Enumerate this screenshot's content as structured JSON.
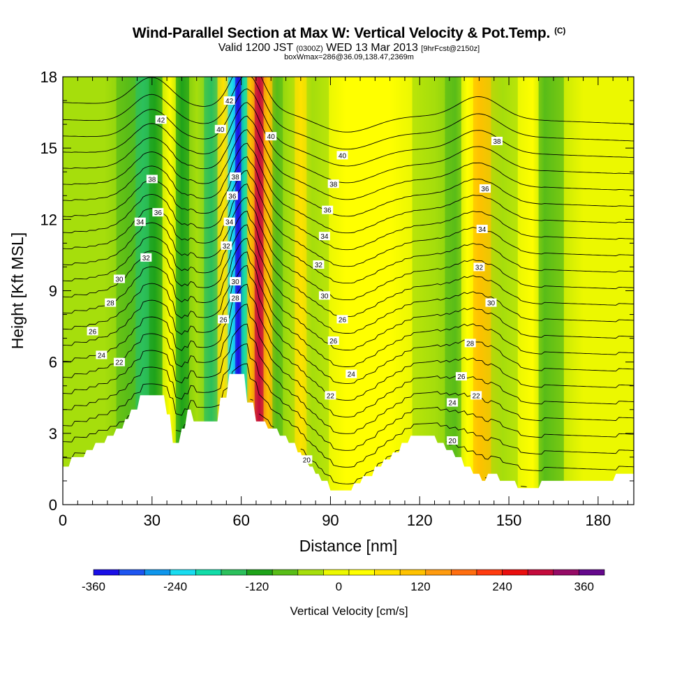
{
  "header": {
    "title": "Wind-Parallel Section at Max W: Vertical Velocity & Pot.Temp.",
    "title_mark": "(C)",
    "valid_prefix": "Valid 1200 JST",
    "valid_zulu": "(0300Z)",
    "valid_date": "WED 13 Mar 2013",
    "forecast": "[9hrFcst@2150z]",
    "box_info": "boxWmax=286@36.09,138.47,2369m"
  },
  "chart_data": {
    "type": "heatmap",
    "xlabel": "Distance [nm]",
    "ylabel": "Height [Kft MSL]",
    "xlim": [
      0,
      192
    ],
    "ylim": [
      0,
      18
    ],
    "x_ticks": [
      0,
      30,
      60,
      90,
      120,
      150,
      180
    ],
    "y_ticks": [
      0,
      3,
      6,
      9,
      12,
      15,
      18
    ],
    "colorbar": {
      "label": "Vertical Velocity [cm/s]",
      "range": [
        -360,
        390
      ],
      "tick_values": [
        -360,
        -240,
        -120,
        0,
        120,
        240,
        360
      ],
      "tick_labels": [
        "-360",
        "-240",
        "-120",
        "0",
        "120",
        "240",
        "360"
      ],
      "colors": [
        "#1a0fe6",
        "#1e55f0",
        "#0f96ec",
        "#19dcf0",
        "#12dca8",
        "#2cc05c",
        "#1fa31a",
        "#59bd18",
        "#a6de0c",
        "#ecf800",
        "#ffff00",
        "#ffe200",
        "#ffc200",
        "#ff9b0f",
        "#ff6e10",
        "#ff3b10",
        "#ea0f0f",
        "#c40b3c",
        "#950b66",
        "#65098c"
      ]
    },
    "vertical_velocity_columns": [
      {
        "x": 5,
        "w": -60
      },
      {
        "x": 14,
        "w": -40
      },
      {
        "x": 22,
        "w": -70
      },
      {
        "x": 27,
        "w": -140
      },
      {
        "x": 31,
        "w": -100
      },
      {
        "x": 36,
        "w": 40
      },
      {
        "x": 40,
        "w": -120
      },
      {
        "x": 45,
        "w": -60
      },
      {
        "x": 50,
        "w": -140
      },
      {
        "x": 54,
        "w": 80
      },
      {
        "x": 57,
        "w": -230
      },
      {
        "x": 59,
        "w": -340
      },
      {
        "x": 61,
        "w": -180
      },
      {
        "x": 63,
        "w": 90
      },
      {
        "x": 66,
        "w": 286
      },
      {
        "x": 69,
        "w": 120
      },
      {
        "x": 72,
        "w": -90
      },
      {
        "x": 76,
        "w": -40
      },
      {
        "x": 80,
        "w": 60
      },
      {
        "x": 84,
        "w": -60
      },
      {
        "x": 95,
        "w": 30
      },
      {
        "x": 110,
        "w": 20
      },
      {
        "x": 125,
        "w": -30
      },
      {
        "x": 132,
        "w": -80
      },
      {
        "x": 136,
        "w": 50
      },
      {
        "x": 140,
        "w": 120
      },
      {
        "x": 148,
        "w": -40
      },
      {
        "x": 158,
        "w": 20
      },
      {
        "x": 162,
        "w": -90
      },
      {
        "x": 175,
        "w": 10
      },
      {
        "x": 185,
        "w": -20
      }
    ],
    "potential_temperature_labels": [
      {
        "x": 33,
        "y": 16.2,
        "label": "42"
      },
      {
        "x": 56,
        "y": 17.0,
        "label": "42"
      },
      {
        "x": 53,
        "y": 15.8,
        "label": "40"
      },
      {
        "x": 70,
        "y": 15.5,
        "label": "40"
      },
      {
        "x": 94,
        "y": 14.7,
        "label": "40"
      },
      {
        "x": 146,
        "y": 15.3,
        "label": "38"
      },
      {
        "x": 30,
        "y": 13.7,
        "label": "38"
      },
      {
        "x": 58,
        "y": 13.8,
        "label": "38"
      },
      {
        "x": 91,
        "y": 13.5,
        "label": "38"
      },
      {
        "x": 142,
        "y": 13.3,
        "label": "36"
      },
      {
        "x": 32,
        "y": 12.3,
        "label": "36"
      },
      {
        "x": 57,
        "y": 13.0,
        "label": "36"
      },
      {
        "x": 89,
        "y": 12.4,
        "label": "36"
      },
      {
        "x": 26,
        "y": 11.9,
        "label": "34"
      },
      {
        "x": 56,
        "y": 11.9,
        "label": "34"
      },
      {
        "x": 88,
        "y": 11.3,
        "label": "34"
      },
      {
        "x": 141,
        "y": 11.6,
        "label": "34"
      },
      {
        "x": 55,
        "y": 10.9,
        "label": "32"
      },
      {
        "x": 28,
        "y": 10.4,
        "label": "32"
      },
      {
        "x": 86,
        "y": 10.1,
        "label": "32"
      },
      {
        "x": 140,
        "y": 10.0,
        "label": "32"
      },
      {
        "x": 19,
        "y": 9.5,
        "label": "30"
      },
      {
        "x": 58,
        "y": 9.4,
        "label": "30"
      },
      {
        "x": 88,
        "y": 8.8,
        "label": "30"
      },
      {
        "x": 144,
        "y": 8.5,
        "label": "30"
      },
      {
        "x": 16,
        "y": 8.5,
        "label": "28"
      },
      {
        "x": 58,
        "y": 8.7,
        "label": "28"
      },
      {
        "x": 137,
        "y": 6.8,
        "label": "28"
      },
      {
        "x": 10,
        "y": 7.3,
        "label": "26"
      },
      {
        "x": 54,
        "y": 7.8,
        "label": "26"
      },
      {
        "x": 94,
        "y": 7.8,
        "label": "26"
      },
      {
        "x": 91,
        "y": 6.9,
        "label": "26"
      },
      {
        "x": 134,
        "y": 5.4,
        "label": "26"
      },
      {
        "x": 13,
        "y": 6.3,
        "label": "24"
      },
      {
        "x": 97,
        "y": 5.5,
        "label": "24"
      },
      {
        "x": 131,
        "y": 4.3,
        "label": "24"
      },
      {
        "x": 19,
        "y": 6.0,
        "label": "22"
      },
      {
        "x": 90,
        "y": 4.6,
        "label": "22"
      },
      {
        "x": 139,
        "y": 4.6,
        "label": "22"
      },
      {
        "x": 82,
        "y": 1.9,
        "label": "20"
      },
      {
        "x": 131,
        "y": 2.7,
        "label": "20"
      }
    ],
    "terrain_profile": [
      [
        0,
        1.6
      ],
      [
        2,
        1.6
      ],
      [
        3,
        2.0
      ],
      [
        7,
        2.0
      ],
      [
        8,
        2.3
      ],
      [
        10,
        2.3
      ],
      [
        11,
        2.6
      ],
      [
        14,
        2.6
      ],
      [
        15,
        2.9
      ],
      [
        17,
        2.9
      ],
      [
        18,
        3.2
      ],
      [
        20,
        3.2
      ],
      [
        21,
        3.6
      ],
      [
        22,
        3.6
      ],
      [
        23,
        4.0
      ],
      [
        25,
        4.0
      ],
      [
        26,
        4.6
      ],
      [
        34,
        4.6
      ],
      [
        35,
        3.8
      ],
      [
        36,
        3.8
      ],
      [
        37,
        2.6
      ],
      [
        39,
        2.6
      ],
      [
        40,
        3.2
      ],
      [
        41,
        3.2
      ],
      [
        42,
        4.0
      ],
      [
        43,
        4.0
      ],
      [
        44,
        3.5
      ],
      [
        45,
        3.5
      ],
      [
        46,
        3.5
      ],
      [
        52,
        3.5
      ],
      [
        53,
        4.5
      ],
      [
        55,
        4.5
      ],
      [
        56,
        5.5
      ],
      [
        61,
        5.5
      ],
      [
        62,
        4.3
      ],
      [
        64,
        4.3
      ],
      [
        65,
        3.5
      ],
      [
        68,
        3.5
      ],
      [
        69,
        3.2
      ],
      [
        72,
        3.2
      ],
      [
        73,
        2.9
      ],
      [
        75,
        2.9
      ],
      [
        76,
        2.6
      ],
      [
        78,
        2.6
      ],
      [
        79,
        2.2
      ],
      [
        80,
        2.2
      ],
      [
        81,
        1.8
      ],
      [
        82,
        1.8
      ],
      [
        83,
        1.6
      ],
      [
        84,
        1.6
      ],
      [
        85,
        1.3
      ],
      [
        86,
        1.3
      ],
      [
        87,
        1.0
      ],
      [
        89,
        1.0
      ],
      [
        90,
        0.6
      ],
      [
        97,
        0.6
      ],
      [
        98,
        0.9
      ],
      [
        100,
        0.9
      ],
      [
        101,
        1.2
      ],
      [
        104,
        1.2
      ],
      [
        105,
        1.6
      ],
      [
        107,
        1.6
      ],
      [
        108,
        1.9
      ],
      [
        110,
        1.9
      ],
      [
        111,
        2.2
      ],
      [
        113,
        2.2
      ],
      [
        114,
        2.6
      ],
      [
        116,
        2.6
      ],
      [
        117,
        2.9
      ],
      [
        125,
        2.9
      ],
      [
        126,
        2.6
      ],
      [
        128,
        2.6
      ],
      [
        129,
        2.3
      ],
      [
        131,
        2.3
      ],
      [
        132,
        2.0
      ],
      [
        134,
        2.0
      ],
      [
        135,
        1.6
      ],
      [
        137,
        1.6
      ],
      [
        138,
        1.3
      ],
      [
        140,
        1.3
      ],
      [
        141,
        1.0
      ],
      [
        142,
        1.0
      ],
      [
        143,
        1.3
      ],
      [
        146,
        1.3
      ],
      [
        147,
        1.0
      ],
      [
        152,
        1.0
      ],
      [
        153,
        0.7
      ],
      [
        160,
        0.7
      ],
      [
        161,
        1.0
      ],
      [
        185,
        1.0
      ],
      [
        186,
        1.3
      ],
      [
        192,
        1.3
      ]
    ]
  }
}
